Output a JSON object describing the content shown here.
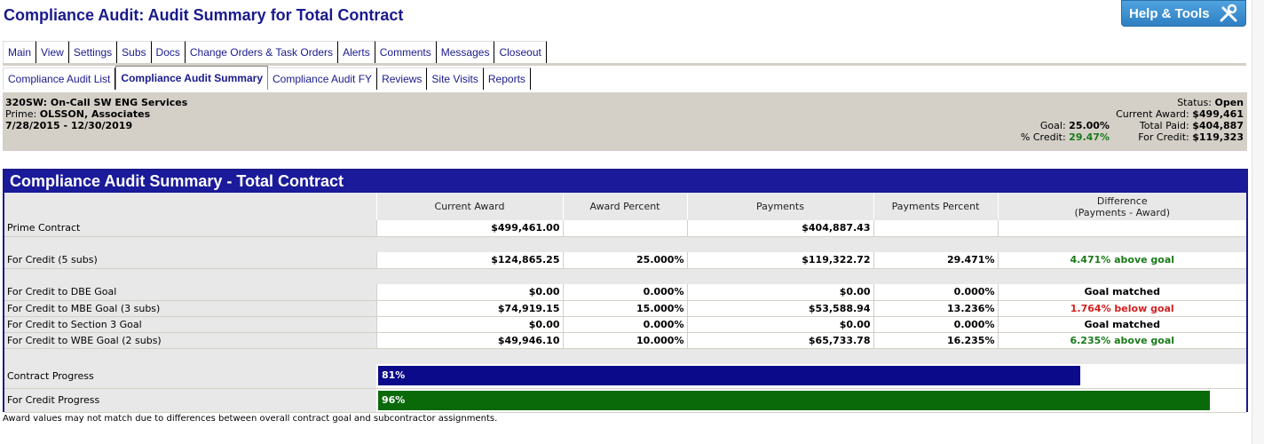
{
  "page": {
    "title": "Compliance Audit: Audit Summary for Total Contract"
  },
  "help": {
    "label": "Help & Tools",
    "icon": "tools-icon"
  },
  "tabs_main": [
    "Main",
    "View",
    "Settings",
    "Subs",
    "Docs",
    "Change Orders & Task Orders",
    "Alerts",
    "Comments",
    "Messages",
    "Closeout"
  ],
  "tabs_sub": {
    "items": [
      "Compliance Audit List",
      "Compliance Audit Summary",
      "Compliance Audit FY",
      "Reviews",
      "Site Visits",
      "Reports"
    ],
    "active": "Compliance Audit Summary"
  },
  "contract": {
    "name": "320SW: On-Call SW ENG Services",
    "prime_label": "Prime:",
    "prime": "OLSSON, Associates",
    "dates": "7/28/2015 - 12/30/2019",
    "goal_label": "Goal:",
    "goal": "25.00%",
    "credit_label": "% Credit:",
    "credit": "29.47%",
    "status_label": "Status:",
    "status": "Open",
    "current_award_label": "Current Award:",
    "current_award": "$499,461",
    "total_paid_label": "Total Paid:",
    "total_paid": "$404,887",
    "for_credit_label": "For Credit:",
    "for_credit": "$119,323"
  },
  "summary": {
    "title": "Compliance Audit Summary - Total Contract",
    "columns": [
      "Current Award",
      "Award Percent",
      "Payments",
      "Payments Percent",
      "Difference",
      "(Payments - Award)"
    ],
    "rows": {
      "prime": {
        "label": "Prime Contract",
        "award": "$499,461.00",
        "award_pct": "",
        "payments": "$404,887.43",
        "pay_pct": "",
        "diff": ""
      },
      "credit": {
        "label": "For Credit (5 subs)",
        "award": "$124,865.25",
        "award_pct": "25.000%",
        "payments": "$119,322.72",
        "pay_pct": "29.471%",
        "diff": "4.471% above goal"
      },
      "dbe": {
        "label": "For Credit to DBE Goal",
        "award": "$0.00",
        "award_pct": "0.000%",
        "payments": "$0.00",
        "pay_pct": "0.000%",
        "diff": "Goal matched"
      },
      "mbe": {
        "label": "For Credit to MBE Goal (3 subs)",
        "award": "$74,919.15",
        "award_pct": "15.000%",
        "payments": "$53,588.94",
        "pay_pct": "13.236%",
        "diff": "1.764% below goal"
      },
      "sec3": {
        "label": "For Credit to Section 3 Goal",
        "award": "$0.00",
        "award_pct": "0.000%",
        "payments": "$0.00",
        "pay_pct": "0.000%",
        "diff": "Goal matched"
      },
      "wbe": {
        "label": "For Credit to WBE Goal (2 subs)",
        "award": "$49,946.10",
        "award_pct": "10.000%",
        "payments": "$65,733.78",
        "pay_pct": "16.235%",
        "diff": "6.235% above goal"
      }
    },
    "progress": {
      "contract": {
        "label": "Contract Progress",
        "text": "81%",
        "value": 0.81
      },
      "credit": {
        "label": "For Credit Progress",
        "text": "96%",
        "value": 0.96
      }
    }
  },
  "colors": {
    "accent": "#1a1a9a",
    "above": "#1a7a1a",
    "below": "#d22020",
    "contract_bar": "#0a0a8a",
    "credit_bar": "#0a6a0a"
  },
  "footnote": "Award values may not match due to differences between overall contract goal and subcontractor assignments."
}
